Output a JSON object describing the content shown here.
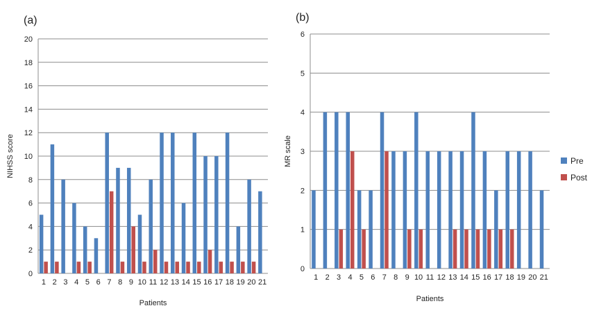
{
  "figure_title": "",
  "chart_data": [
    {
      "type": "bar",
      "panel_label": "(a)",
      "title": "",
      "xlabel": "Patients",
      "ylabel": "NIHSS score",
      "ylim": [
        0,
        20
      ],
      "yticks": [
        "0",
        "2",
        "4",
        "6",
        "8",
        "10",
        "12",
        "14",
        "16",
        "18",
        "20"
      ],
      "grid": true,
      "categories": [
        "1",
        "2",
        "3",
        "4",
        "5",
        "6",
        "7",
        "8",
        "9",
        "10",
        "11",
        "12",
        "13",
        "14",
        "15",
        "16",
        "17",
        "18",
        "19",
        "20",
        "21"
      ],
      "series": [
        {
          "name": "Pre",
          "color": "#4F81BD",
          "values": [
            5,
            11,
            8,
            6,
            4,
            3,
            12,
            9,
            9,
            5,
            8,
            12,
            12,
            6,
            12,
            10,
            10,
            12,
            4,
            8,
            7
          ]
        },
        {
          "name": "Post",
          "color": "#C0504D",
          "values": [
            1,
            1,
            0,
            1,
            1,
            0,
            7,
            1,
            4,
            1,
            2,
            1,
            1,
            1,
            1,
            2,
            1,
            1,
            1,
            1,
            0
          ]
        }
      ]
    },
    {
      "type": "bar",
      "panel_label": "(b)",
      "title": "",
      "xlabel": "Patients",
      "ylabel": "MR scale",
      "ylim": [
        0,
        6
      ],
      "yticks": [
        "0",
        "1",
        "2",
        "3",
        "4",
        "5",
        "6"
      ],
      "grid": true,
      "categories": [
        "1",
        "2",
        "3",
        "4",
        "5",
        "6",
        "7",
        "8",
        "9",
        "10",
        "11",
        "12",
        "13",
        "14",
        "15",
        "16",
        "17",
        "18",
        "19",
        "20",
        "21"
      ],
      "series": [
        {
          "name": "Pre",
          "color": "#4F81BD",
          "values": [
            2,
            4,
            4,
            4,
            2,
            2,
            4,
            3,
            3,
            4,
            3,
            3,
            3,
            3,
            4,
            3,
            2,
            3,
            3,
            3,
            2
          ]
        },
        {
          "name": "Post",
          "color": "#C0504D",
          "values": [
            0,
            0,
            1,
            3,
            1,
            0,
            3,
            0,
            1,
            1,
            0,
            0,
            1,
            1,
            1,
            1,
            1,
            1,
            0,
            0,
            0
          ]
        }
      ]
    }
  ],
  "legend": {
    "placement": "right",
    "items": [
      {
        "label": "Pre",
        "color": "#4F81BD"
      },
      {
        "label": "Post",
        "color": "#C0504D"
      }
    ]
  }
}
